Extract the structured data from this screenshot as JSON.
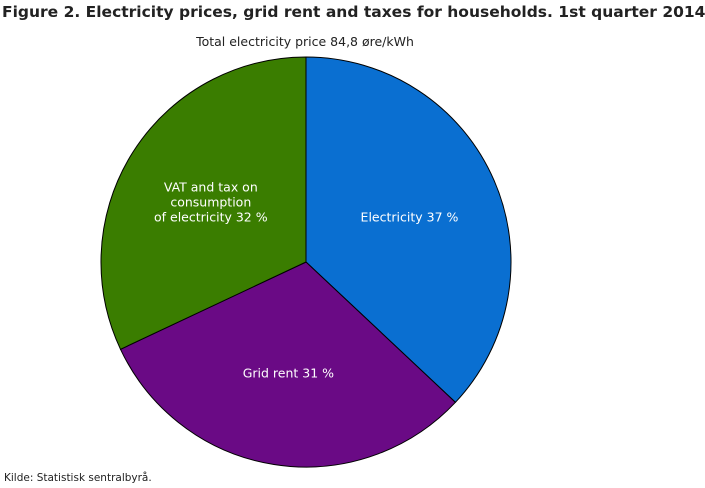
{
  "chart_data": {
    "type": "pie",
    "title": "Figure 2. Electricity prices, grid rent and taxes for households. 1st quarter 2014",
    "subtitle": "Total electricity price 84,8 øre/kWh",
    "values": [
      37,
      31,
      32
    ],
    "value_labels": [
      "Electricity 37 %",
      "Grid rent 31 %",
      "VAT and tax on\nconsumption\nof electricity 32 %"
    ],
    "colors": [
      "#0a6fd1",
      "#6a0a85",
      "#3a7d00"
    ],
    "source": "Kilde: Statistisk sentralbyrå."
  }
}
